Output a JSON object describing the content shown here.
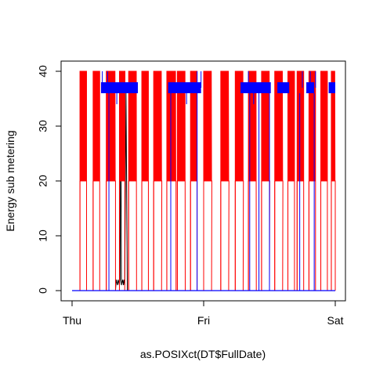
{
  "chart_data": {
    "type": "line",
    "title": "",
    "xlabel": "as.POSIXct(DT$FullDate)",
    "ylabel": "Energy sub metering",
    "x_ticks": [
      "Thu",
      "Fri",
      "Sat"
    ],
    "x_tick_positions": [
      0,
      1,
      2
    ],
    "x_units": "days from Thu 00:00",
    "xlim": [
      0,
      2
    ],
    "y_ticks": [
      0,
      10,
      20,
      30,
      40
    ],
    "ylim": [
      0,
      40
    ],
    "grid": false,
    "legend": "none",
    "series": [
      {
        "color": "#000000",
        "segments": [
          {
            "x": [
              0.0,
              0.33,
              0.335,
              0.345,
              0.35,
              0.36,
              0.365,
              0.37,
              0.375,
              0.385,
              0.39,
              0.395,
              0.4,
              0.41,
              0.42,
              2.0
            ],
            "y": [
              0,
              0,
              2,
              1,
              2,
              1,
              2,
              36,
              1,
              2,
              1,
              2,
              1,
              36,
              0,
              0
            ]
          }
        ]
      },
      {
        "color": "#ff0000",
        "bursts": [
          {
            "start": 0.06,
            "end": 0.11,
            "high": 40,
            "low": 20
          },
          {
            "start": 0.16,
            "end": 0.21,
            "high": 40,
            "low": 20
          },
          {
            "start": 0.26,
            "end": 0.33,
            "high": 40,
            "low": 20
          },
          {
            "start": 0.36,
            "end": 0.4,
            "high": 40,
            "low": 20
          },
          {
            "start": 0.43,
            "end": 0.49,
            "high": 40,
            "low": 20
          },
          {
            "start": 0.53,
            "end": 0.58,
            "high": 40,
            "low": 20
          },
          {
            "start": 0.62,
            "end": 0.68,
            "high": 40,
            "low": 20
          },
          {
            "start": 0.72,
            "end": 0.79,
            "high": 40,
            "low": 20
          },
          {
            "start": 0.8,
            "end": 0.86,
            "high": 40,
            "low": 20
          },
          {
            "start": 0.9,
            "end": 0.95,
            "high": 40,
            "low": 20
          },
          {
            "start": 1.0,
            "end": 1.06,
            "high": 40,
            "low": 20
          },
          {
            "start": 1.13,
            "end": 1.19,
            "high": 40,
            "low": 20
          },
          {
            "start": 1.24,
            "end": 1.3,
            "high": 40,
            "low": 20
          },
          {
            "start": 1.34,
            "end": 1.4,
            "high": 40,
            "low": 20
          },
          {
            "start": 1.44,
            "end": 1.5,
            "high": 40,
            "low": 20
          },
          {
            "start": 1.54,
            "end": 1.6,
            "high": 40,
            "low": 20
          },
          {
            "start": 1.64,
            "end": 1.69,
            "high": 40,
            "low": 20
          },
          {
            "start": 1.71,
            "end": 1.76,
            "high": 40,
            "low": 20
          },
          {
            "start": 1.8,
            "end": 1.85,
            "high": 40,
            "low": 20
          },
          {
            "start": 1.89,
            "end": 1.94,
            "high": 40,
            "low": 20
          },
          {
            "start": 1.97,
            "end": 2.0,
            "high": 40,
            "low": 20
          }
        ]
      },
      {
        "color": "#0000ff",
        "blocks": [
          {
            "start": 0.22,
            "end": 0.5,
            "low": 36,
            "high": 38
          },
          {
            "start": 0.73,
            "end": 0.98,
            "low": 36,
            "high": 38
          },
          {
            "start": 1.28,
            "end": 1.51,
            "low": 36,
            "high": 38
          },
          {
            "start": 1.56,
            "end": 1.65,
            "low": 36,
            "high": 38
          },
          {
            "start": 1.78,
            "end": 1.84,
            "low": 36,
            "high": 38
          },
          {
            "start": 1.95,
            "end": 2.0,
            "low": 36,
            "high": 38
          }
        ],
        "spikes": [
          {
            "x": 0.23,
            "y": 40
          },
          {
            "x": 0.27,
            "y": 40
          },
          {
            "x": 0.34,
            "y": 34
          },
          {
            "x": 0.87,
            "y": 34
          },
          {
            "x": 0.95,
            "y": 40
          },
          {
            "x": 0.98,
            "y": 40
          },
          {
            "x": 1.34,
            "y": 40
          },
          {
            "x": 1.38,
            "y": 34
          },
          {
            "x": 1.75,
            "y": 40
          },
          {
            "x": 1.81,
            "y": 40
          },
          {
            "x": 1.85,
            "y": 40
          }
        ],
        "drops": [
          {
            "x": 0.28,
            "y": 0
          },
          {
            "x": 0.75,
            "y": 0
          },
          {
            "x": 0.95,
            "y": 0
          },
          {
            "x": 1.35,
            "y": 0
          },
          {
            "x": 1.42,
            "y": 0
          },
          {
            "x": 1.5,
            "y": 0
          },
          {
            "x": 1.73,
            "y": 0
          },
          {
            "x": 1.84,
            "y": 0
          }
        ]
      }
    ]
  }
}
